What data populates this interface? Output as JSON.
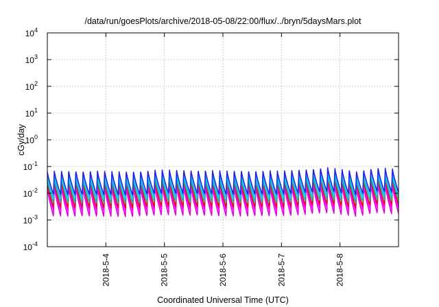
{
  "chart_data": {
    "type": "line",
    "title": "/data/run/goesPlots/archive/2018-05-08/22:00/flux/../bryn/5daysMars.plot",
    "xlabel": "Coordinated Universal Time (UTC)",
    "ylabel": "cGy/day",
    "yscale": "log",
    "ylim": [
      0.0001,
      10000
    ],
    "xlim": [
      "2018-05-03 00:00",
      "2018-05-09 00:00"
    ],
    "y_ticks": [
      {
        "base": "10",
        "exp": "-4"
      },
      {
        "base": "10",
        "exp": "-3"
      },
      {
        "base": "10",
        "exp": "-2"
      },
      {
        "base": "10",
        "exp": "-1"
      },
      {
        "base": "10",
        "exp": "0"
      },
      {
        "base": "10",
        "exp": "1"
      },
      {
        "base": "10",
        "exp": "2"
      },
      {
        "base": "10",
        "exp": "3"
      },
      {
        "base": "10",
        "exp": "4"
      }
    ],
    "x_ticks": [
      {
        "label": "2018-5-4",
        "day": 1
      },
      {
        "label": "2018-5-5",
        "day": 2
      },
      {
        "label": "2018-5-6",
        "day": 3
      },
      {
        "label": "2018-5-7",
        "day": 4
      },
      {
        "label": "2018-5-8",
        "day": 5
      }
    ],
    "grid": true,
    "legend": "none",
    "period_hours": 2.95,
    "trend": [
      {
        "day": 0.0,
        "factor": 1.0
      },
      {
        "day": 1.5,
        "factor": 0.95
      },
      {
        "day": 2.0,
        "factor": 1.1
      },
      {
        "day": 3.0,
        "factor": 1.0
      },
      {
        "day": 4.0,
        "factor": 1.0
      },
      {
        "day": 4.8,
        "factor": 1.3
      },
      {
        "day": 5.3,
        "factor": 0.95
      },
      {
        "day": 5.6,
        "factor": 1.3
      },
      {
        "day": 6.0,
        "factor": 1.15
      }
    ],
    "series": [
      {
        "color": "#e000e0",
        "peak": 0.018,
        "trough": 0.0014
      },
      {
        "color": "#ff00ff",
        "peak": 0.022,
        "trough": 0.0022
      },
      {
        "color": "#e01010",
        "peak": 0.028,
        "trough": 0.003
      },
      {
        "color": "#20b0a0",
        "peak": 0.035,
        "trough": 0.0045
      },
      {
        "color": "#00c8ff",
        "peak": 0.045,
        "trough": 0.0065
      },
      {
        "color": "#2020e0",
        "peak": 0.07,
        "trough": 0.009
      }
    ]
  }
}
